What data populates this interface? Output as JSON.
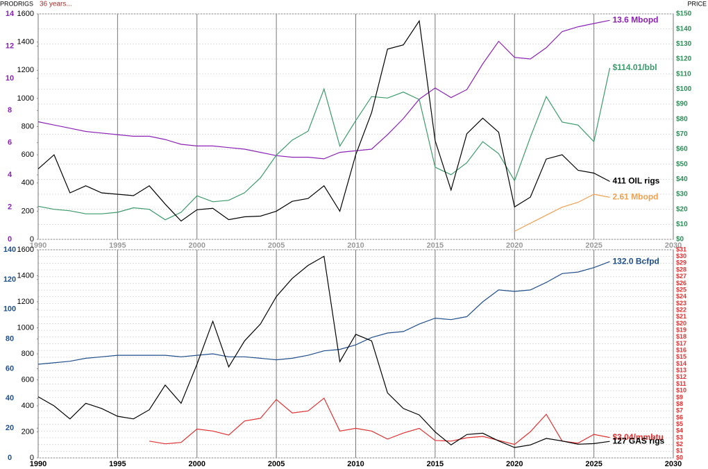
{
  "header": {
    "prod": "PROD",
    "rigs": "RIGS",
    "note": "36 years...",
    "price": "PRICE"
  },
  "chart_data": [
    {
      "type": "line",
      "x": [
        1990,
        1991,
        1992,
        1993,
        1994,
        1995,
        1996,
        1997,
        1998,
        1999,
        2000,
        2001,
        2002,
        2003,
        2004,
        2005,
        2006,
        2007,
        2008,
        2009,
        2010,
        2011,
        2012,
        2013,
        2014,
        2015,
        2016,
        2017,
        2018,
        2019,
        2020,
        2021,
        2022,
        2023,
        2024,
        2025,
        2026
      ],
      "xlim": [
        1990,
        2030
      ],
      "xticks": [
        1990,
        1995,
        2000,
        2005,
        2010,
        2015,
        2020,
        2025,
        2030
      ],
      "xtick_color": "#9a9a9a",
      "ylim": [
        0,
        14
      ],
      "yticks": [
        0,
        2,
        4,
        6,
        8,
        10,
        12,
        14
      ],
      "ytick_color": "#8b22b5",
      "y3lim": [
        0,
        1600
      ],
      "y3ticks": [
        0,
        200,
        400,
        600,
        800,
        1000,
        1200,
        1400,
        1600
      ],
      "y3tick_color": "#000000",
      "y2lim": [
        0,
        150
      ],
      "y2ticks": [
        {
          "value": 0,
          "label": "$0"
        },
        {
          "value": 10,
          "label": "$10"
        },
        {
          "value": 20,
          "label": "$20"
        },
        {
          "value": 30,
          "label": "$30"
        },
        {
          "value": 40,
          "label": "$40"
        },
        {
          "value": 50,
          "label": "$50"
        },
        {
          "value": 60,
          "label": "$60"
        },
        {
          "value": 70,
          "label": "$70"
        },
        {
          "value": 80,
          "label": "$80"
        },
        {
          "value": 90,
          "label": "$90"
        },
        {
          "value": 100,
          "label": "$100"
        },
        {
          "value": 110,
          "label": "$110"
        },
        {
          "value": 120,
          "label": "$120"
        },
        {
          "value": 130,
          "label": "$130"
        },
        {
          "value": 140,
          "label": "$140"
        },
        {
          "value": 150,
          "label": "$150"
        }
      ],
      "y2tick_color": "#2e8b57",
      "grid": true,
      "series": [
        {
          "name": "13.6 Mbopd",
          "color": "#8b22b5",
          "axis": "y",
          "values": [
            7.3,
            7.1,
            6.9,
            6.7,
            6.6,
            6.5,
            6.4,
            6.4,
            6.2,
            5.9,
            5.8,
            5.8,
            5.7,
            5.6,
            5.4,
            5.2,
            5.1,
            5.1,
            5.0,
            5.4,
            5.5,
            5.6,
            6.5,
            7.5,
            8.7,
            9.4,
            8.8,
            9.3,
            10.9,
            12.3,
            11.3,
            11.2,
            11.9,
            12.9,
            13.2,
            13.4,
            13.6
          ]
        },
        {
          "name": "$114.01/bbl",
          "color": "#3a9a6a",
          "axis": "y2",
          "values": [
            22,
            20,
            19,
            17,
            17,
            18,
            21,
            20,
            13,
            18,
            29,
            25,
            26,
            31,
            41,
            56,
            66,
            72,
            100,
            62,
            79,
            95,
            94,
            98,
            93,
            48,
            43,
            51,
            65,
            57,
            39,
            68,
            95,
            78,
            76,
            65,
            114.01
          ]
        },
        {
          "name": "411 OIL rigs",
          "color": "#000000",
          "axis": "y3",
          "values": [
            500,
            600,
            330,
            380,
            330,
            320,
            310,
            380,
            250,
            130,
            210,
            220,
            140,
            160,
            165,
            200,
            270,
            290,
            380,
            200,
            600,
            900,
            1350,
            1380,
            1550,
            700,
            350,
            750,
            860,
            760,
            230,
            300,
            570,
            600,
            490,
            470,
            411
          ]
        },
        {
          "name": "2.61 Mbopd",
          "color": "#f0a050",
          "axis": "y",
          "values": [
            null,
            null,
            null,
            null,
            null,
            null,
            null,
            null,
            null,
            null,
            null,
            null,
            null,
            null,
            null,
            null,
            null,
            null,
            null,
            null,
            null,
            null,
            null,
            null,
            null,
            null,
            null,
            null,
            null,
            null,
            0.5,
            1.0,
            1.5,
            2.0,
            2.3,
            2.8,
            2.61
          ]
        }
      ]
    },
    {
      "type": "line",
      "x": [
        1990,
        1991,
        1992,
        1993,
        1994,
        1995,
        1996,
        1997,
        1998,
        1999,
        2000,
        2001,
        2002,
        2003,
        2004,
        2005,
        2006,
        2007,
        2008,
        2009,
        2010,
        2011,
        2012,
        2013,
        2014,
        2015,
        2016,
        2017,
        2018,
        2019,
        2020,
        2021,
        2022,
        2023,
        2024,
        2025,
        2026
      ],
      "xlim": [
        1990,
        2030
      ],
      "xticks": [
        1990,
        1995,
        2000,
        2005,
        2010,
        2015,
        2020,
        2025,
        2030
      ],
      "xtick_color": "#000000",
      "ylim": [
        0,
        140
      ],
      "yticks": [
        0,
        20,
        40,
        60,
        80,
        100,
        120,
        140
      ],
      "ytick_color": "#1f4e8c",
      "y3lim": [
        0,
        1600
      ],
      "y3ticks": [
        0,
        200,
        400,
        600,
        800,
        1000,
        1200,
        1400,
        1600
      ],
      "y3tick_color": "#000000",
      "y2lim": [
        0,
        31
      ],
      "y2ticks": [
        {
          "value": 0,
          "label": "$0"
        },
        {
          "value": 1,
          "label": "$1"
        },
        {
          "value": 2,
          "label": "$2"
        },
        {
          "value": 3,
          "label": "$3"
        },
        {
          "value": 4,
          "label": "$4"
        },
        {
          "value": 5,
          "label": "$5"
        },
        {
          "value": 6,
          "label": "$6"
        },
        {
          "value": 7,
          "label": "$7"
        },
        {
          "value": 8,
          "label": "$8"
        },
        {
          "value": 9,
          "label": "$9"
        },
        {
          "value": 10,
          "label": "$10"
        },
        {
          "value": 11,
          "label": "$11"
        },
        {
          "value": 12,
          "label": "$12"
        },
        {
          "value": 13,
          "label": "$13"
        },
        {
          "value": 14,
          "label": "$14"
        },
        {
          "value": 15,
          "label": "$15"
        },
        {
          "value": 16,
          "label": "$16"
        },
        {
          "value": 17,
          "label": "$17"
        },
        {
          "value": 18,
          "label": "$18"
        },
        {
          "value": 19,
          "label": "$19"
        },
        {
          "value": 20,
          "label": "$20"
        },
        {
          "value": 21,
          "label": "$21"
        },
        {
          "value": 22,
          "label": "$22"
        },
        {
          "value": 23,
          "label": "$23"
        },
        {
          "value": 24,
          "label": "$24"
        },
        {
          "value": 25,
          "label": "$25"
        },
        {
          "value": 26,
          "label": "$26"
        },
        {
          "value": 27,
          "label": "$27"
        },
        {
          "value": 28,
          "label": "$28"
        },
        {
          "value": 29,
          "label": "$29"
        },
        {
          "value": 30,
          "label": "$30"
        },
        {
          "value": 31,
          "label": "$31"
        }
      ],
      "y2tick_color": "#e03030",
      "grid": true,
      "series": [
        {
          "name": "132.0 Bcfpd",
          "color": "#1f4e8c",
          "axis": "y",
          "values": [
            63,
            64,
            65,
            67,
            68,
            69,
            69,
            69,
            69,
            68,
            69,
            70,
            68,
            68,
            67,
            66,
            67,
            69,
            72,
            73,
            76,
            81,
            84,
            85,
            90,
            94,
            93,
            95,
            105,
            113,
            112,
            113,
            118,
            124,
            125,
            128,
            132.0
          ]
        },
        {
          "name": "$3.04/mmbtu",
          "color": "#e03030",
          "axis": "y2",
          "values": [
            null,
            null,
            null,
            null,
            null,
            null,
            null,
            2.5,
            2.1,
            2.3,
            4.3,
            4.0,
            3.4,
            5.5,
            5.9,
            8.7,
            6.7,
            7.0,
            8.9,
            4.0,
            4.4,
            4.0,
            2.8,
            3.7,
            4.4,
            2.6,
            2.5,
            3.0,
            3.2,
            2.6,
            2.0,
            3.9,
            6.5,
            2.5,
            2.2,
            3.5,
            3.04
          ]
        },
        {
          "name": "127 GAS rigs",
          "color": "#000000",
          "axis": "y3",
          "values": [
            470,
            400,
            300,
            420,
            380,
            320,
            300,
            370,
            560,
            420,
            720,
            1050,
            700,
            900,
            1030,
            1240,
            1380,
            1480,
            1550,
            740,
            950,
            900,
            500,
            380,
            330,
            200,
            100,
            180,
            190,
            130,
            80,
            100,
            150,
            130,
            105,
            110,
            127
          ]
        }
      ]
    }
  ]
}
